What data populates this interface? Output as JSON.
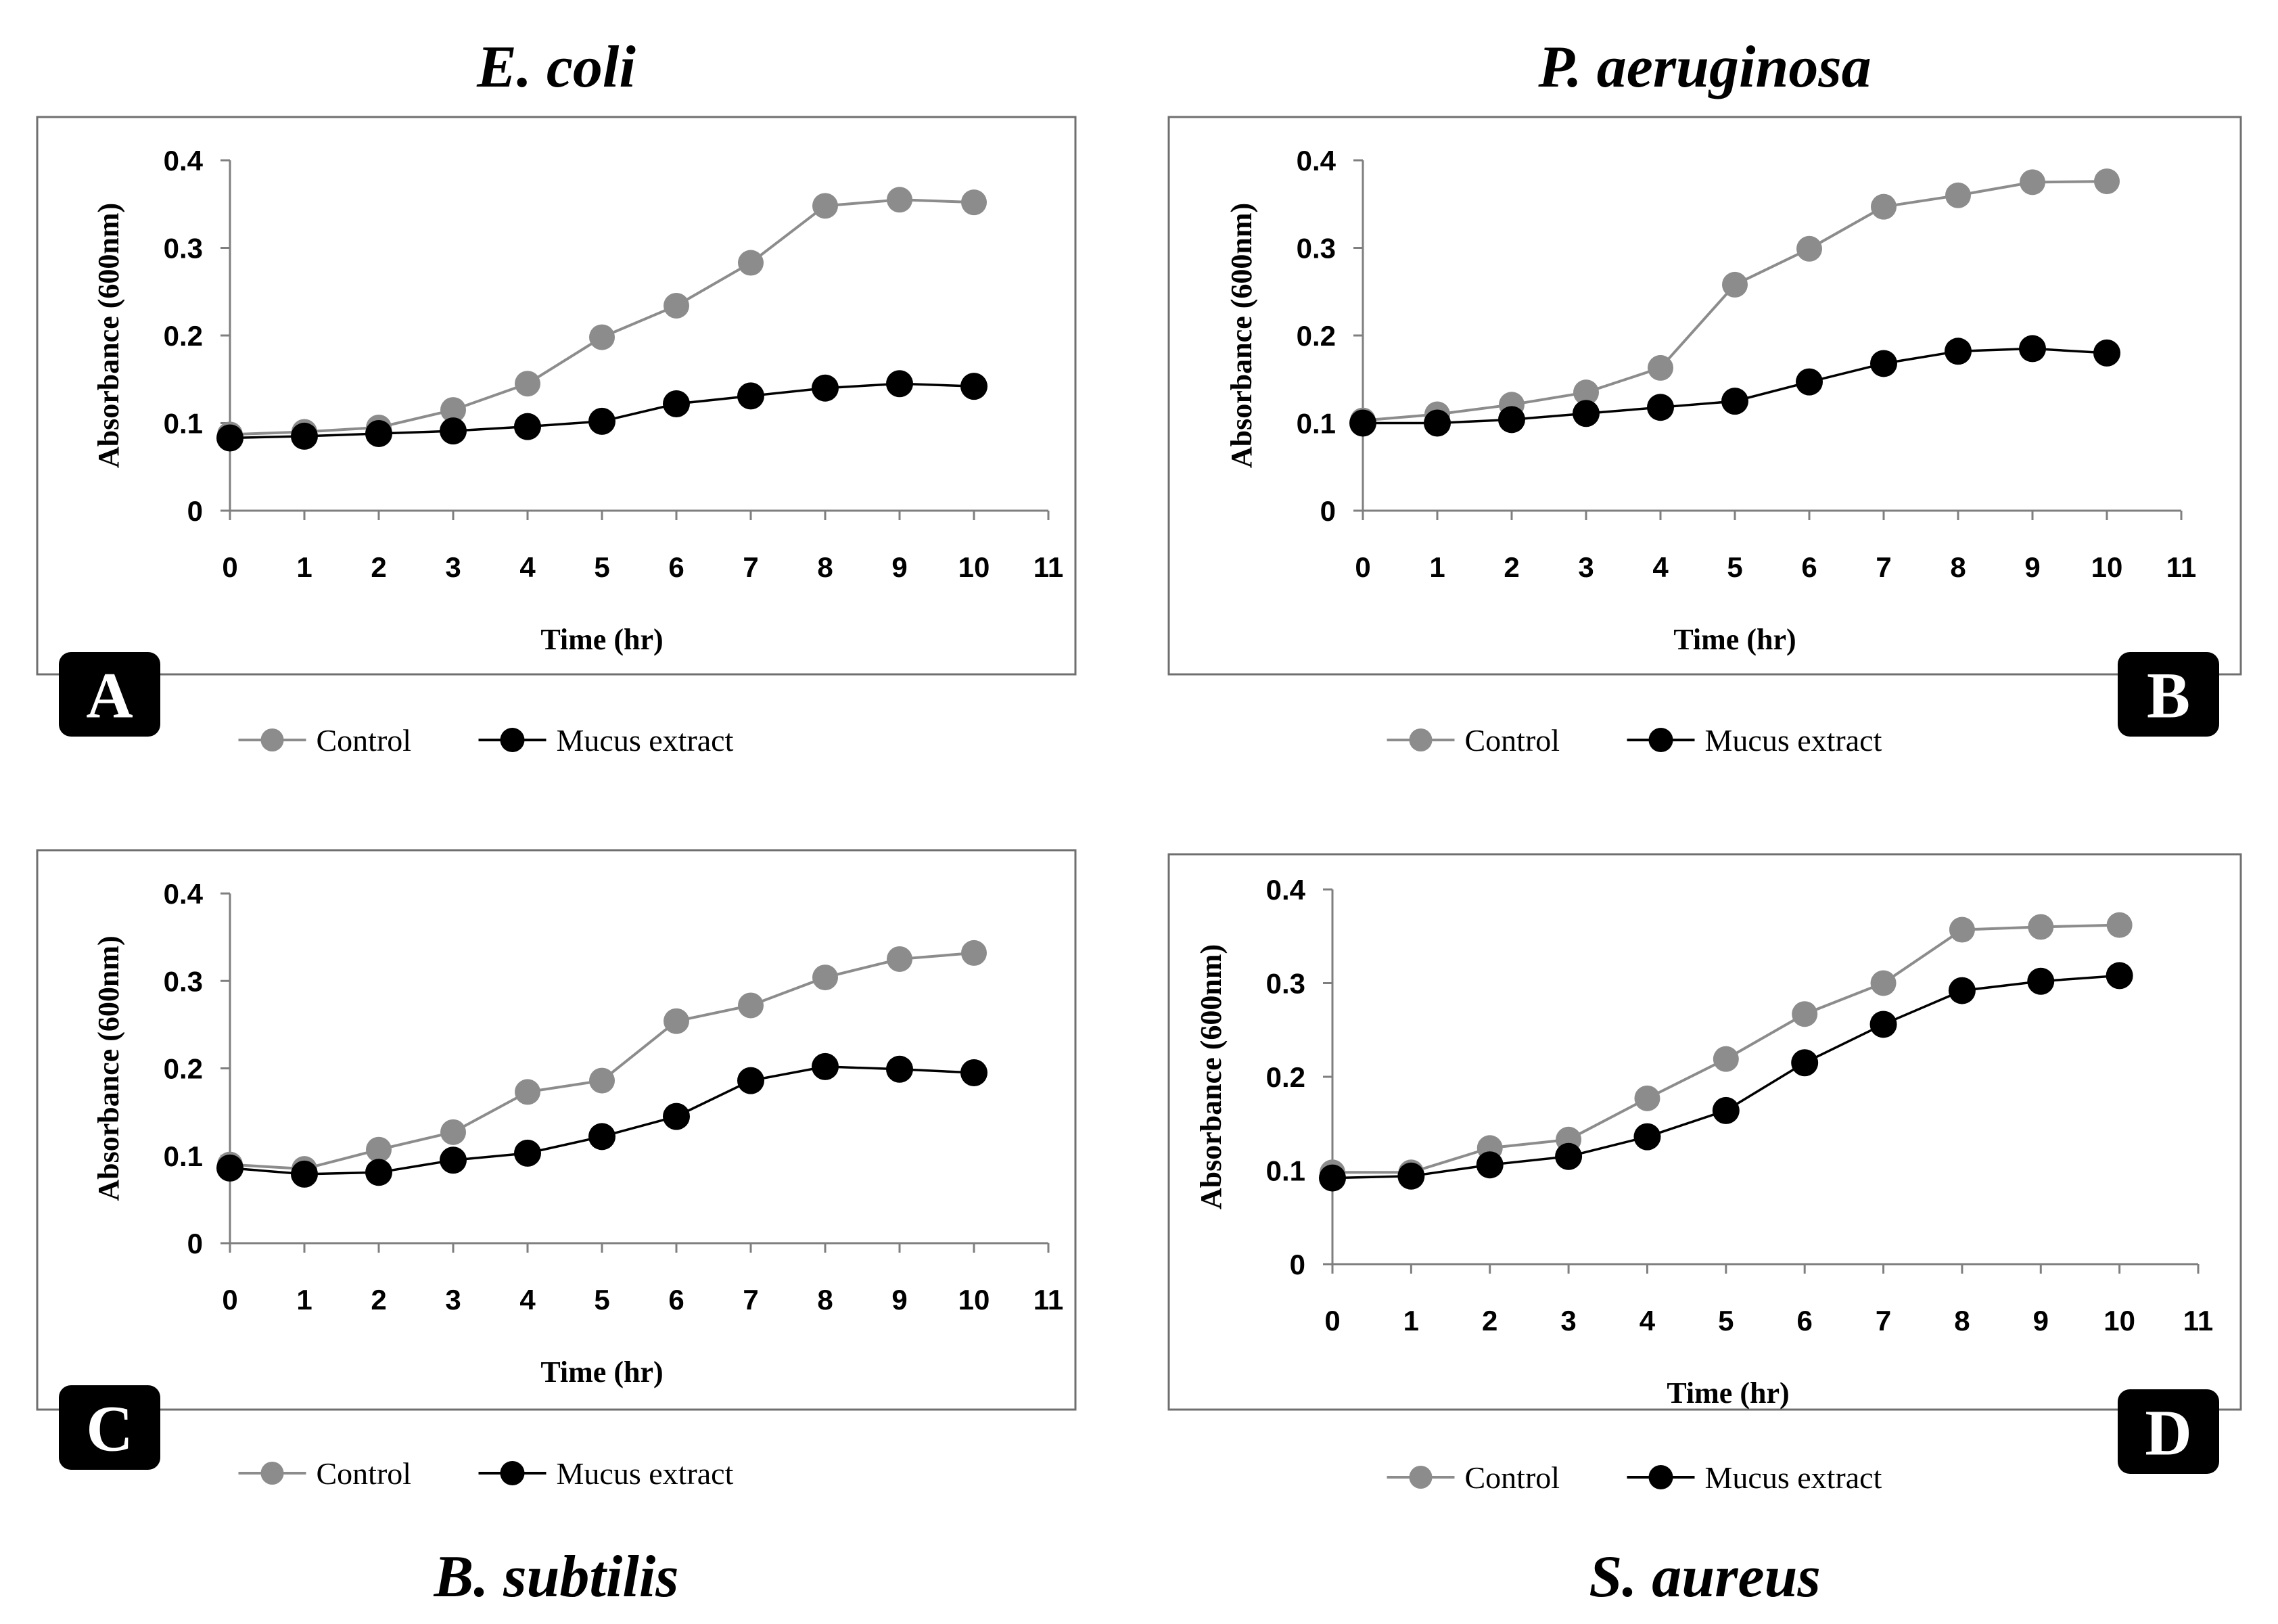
{
  "colors": {
    "control": "#8c8c8c",
    "mucus": "#000000",
    "axis": "#7f7f7f",
    "frame": "#6f6f6f",
    "badge": "#000000"
  },
  "chart_data": [
    {
      "type": "line",
      "panel": "A",
      "title": "E. coli",
      "title_position": "top",
      "badge_position": "left",
      "xlabel": "Time (hr)",
      "ylabel": "Absorbance (600nm)",
      "xlim": [
        0,
        11
      ],
      "ylim": [
        0,
        0.4
      ],
      "x_ticks": [
        "0",
        "1",
        "2",
        "3",
        "4",
        "5",
        "6",
        "7",
        "8",
        "9",
        "10",
        "11"
      ],
      "y_ticks": [
        "0",
        "0.1",
        "0.2",
        "0.3",
        "0.4"
      ],
      "x": [
        0,
        1,
        2,
        3,
        4,
        5,
        6,
        7,
        8,
        9,
        10
      ],
      "series": [
        {
          "name": "Control",
          "values": [
            0.087,
            0.09,
            0.095,
            0.115,
            0.145,
            0.198,
            0.234,
            0.283,
            0.348,
            0.355,
            0.352
          ]
        },
        {
          "name": "Mucus extract",
          "values": [
            0.083,
            0.085,
            0.088,
            0.091,
            0.096,
            0.102,
            0.122,
            0.131,
            0.14,
            0.145,
            0.142
          ]
        }
      ],
      "legend": [
        "Control",
        "Mucus extract"
      ]
    },
    {
      "type": "line",
      "panel": "B",
      "title": "P. aeruginosa",
      "title_position": "top",
      "badge_position": "right",
      "xlabel": "Time (hr)",
      "ylabel": "Absorbance (600nm)",
      "xlim": [
        0,
        11
      ],
      "ylim": [
        0,
        0.4
      ],
      "x_ticks": [
        "0",
        "1",
        "2",
        "3",
        "4",
        "5",
        "6",
        "7",
        "8",
        "9",
        "10",
        "11"
      ],
      "y_ticks": [
        "0",
        "0.1",
        "0.2",
        "0.3",
        "0.4"
      ],
      "x": [
        0,
        1,
        2,
        3,
        4,
        5,
        6,
        7,
        8,
        9,
        10
      ],
      "series": [
        {
          "name": "Control",
          "values": [
            0.103,
            0.11,
            0.121,
            0.135,
            0.163,
            0.258,
            0.299,
            0.347,
            0.36,
            0.375,
            0.376
          ]
        },
        {
          "name": "Mucus extract",
          "values": [
            0.1,
            0.1,
            0.104,
            0.111,
            0.118,
            0.125,
            0.147,
            0.168,
            0.182,
            0.185,
            0.18
          ]
        }
      ],
      "legend": [
        "Control",
        "Mucus extract"
      ]
    },
    {
      "type": "line",
      "panel": "C",
      "title": "B. subtilis",
      "title_position": "bottom",
      "badge_position": "left",
      "xlabel": "Time (hr)",
      "ylabel": "Absorbance (600nm)",
      "xlim": [
        0,
        11
      ],
      "ylim": [
        0,
        0.4
      ],
      "x_ticks": [
        "0",
        "1",
        "2",
        "3",
        "4",
        "5",
        "6",
        "7",
        "8",
        "9",
        "10",
        "11"
      ],
      "y_ticks": [
        "0",
        "0.1",
        "0.2",
        "0.3",
        "0.4"
      ],
      "x": [
        0,
        1,
        2,
        3,
        4,
        5,
        6,
        7,
        8,
        9,
        10
      ],
      "series": [
        {
          "name": "Control",
          "values": [
            0.09,
            0.085,
            0.107,
            0.127,
            0.173,
            0.186,
            0.254,
            0.272,
            0.304,
            0.325,
            0.332
          ]
        },
        {
          "name": "Mucus extract",
          "values": [
            0.086,
            0.079,
            0.081,
            0.095,
            0.103,
            0.122,
            0.145,
            0.186,
            0.202,
            0.199,
            0.195
          ]
        }
      ],
      "legend": [
        "Control",
        "Mucus extract"
      ]
    },
    {
      "type": "line",
      "panel": "D",
      "title": "S. aureus",
      "title_position": "bottom",
      "badge_position": "right",
      "xlabel": "Time (hr)",
      "ylabel": "Absorbance (600nm)",
      "xlim": [
        0,
        11
      ],
      "ylim": [
        0,
        0.4
      ],
      "x_ticks": [
        "0",
        "1",
        "2",
        "3",
        "4",
        "5",
        "6",
        "7",
        "8",
        "9",
        "10",
        "11"
      ],
      "y_ticks": [
        "0",
        "0.1",
        "0.2",
        "0.3",
        "0.4"
      ],
      "x": [
        0,
        1,
        2,
        3,
        4,
        5,
        6,
        7,
        8,
        9,
        10
      ],
      "series": [
        {
          "name": "Control",
          "values": [
            0.098,
            0.098,
            0.124,
            0.133,
            0.177,
            0.219,
            0.267,
            0.3,
            0.357,
            0.36,
            0.362
          ]
        },
        {
          "name": "Mucus extract",
          "values": [
            0.092,
            0.094,
            0.106,
            0.115,
            0.136,
            0.164,
            0.215,
            0.256,
            0.292,
            0.302,
            0.308
          ]
        }
      ],
      "legend": [
        "Control",
        "Mucus extract"
      ]
    }
  ]
}
